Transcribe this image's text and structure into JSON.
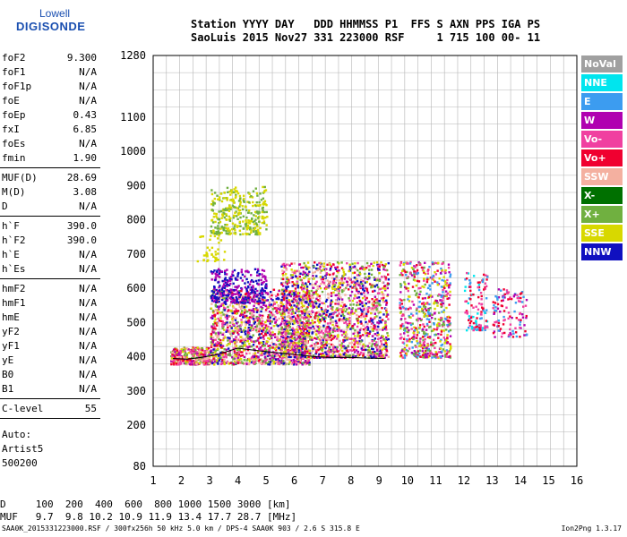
{
  "logo": {
    "line1": "Lowell",
    "line2": "DIGISONDE"
  },
  "header": {
    "line1": "Station YYYY DAY   DDD HHMMSS P1  FFS S AXN PPS IGA PS",
    "line2": "SaoLuis 2015 Nov27 331 223000 RSF     1 715 100 00- 11"
  },
  "params_group1": [
    {
      "label": "foF2",
      "value": "9.300"
    },
    {
      "label": "foF1",
      "value": "N/A"
    },
    {
      "label": "foF1p",
      "value": "N/A"
    },
    {
      "label": "foE",
      "value": "N/A"
    },
    {
      "label": "foEp",
      "value": "0.43"
    },
    {
      "label": "fxI",
      "value": "6.85"
    },
    {
      "label": "foEs",
      "value": "N/A"
    },
    {
      "label": "fmin",
      "value": "1.90"
    }
  ],
  "params_group2": [
    {
      "label": "MUF(D)",
      "value": "28.69"
    },
    {
      "label": "M(D)",
      "value": "3.08"
    },
    {
      "label": "D",
      "value": "N/A"
    }
  ],
  "params_group3": [
    {
      "label": "h`F",
      "value": "390.0"
    },
    {
      "label": "h`F2",
      "value": "390.0"
    },
    {
      "label": "h`E",
      "value": "N/A"
    },
    {
      "label": "h`Es",
      "value": "N/A"
    }
  ],
  "params_group4": [
    {
      "label": "hmF2",
      "value": "N/A"
    },
    {
      "label": "hmF1",
      "value": "N/A"
    },
    {
      "label": "hmE",
      "value": "N/A"
    },
    {
      "label": "yF2",
      "value": "N/A"
    },
    {
      "label": "yF1",
      "value": "N/A"
    },
    {
      "label": "yE",
      "value": "N/A"
    },
    {
      "label": "B0",
      "value": "N/A"
    },
    {
      "label": "B1",
      "value": "N/A"
    }
  ],
  "params_group5": [
    {
      "label": "C-level",
      "value": "55"
    }
  ],
  "auto": {
    "line1": "Auto:",
    "line2": "Artist5",
    "line3": "500200"
  },
  "legend": [
    {
      "label": "NoVal",
      "color": "#a0a0a0"
    },
    {
      "label": "NNE",
      "color": "#00e5ee"
    },
    {
      "label": "E",
      "color": "#3c9cf0"
    },
    {
      "label": "W",
      "color": "#b000b0"
    },
    {
      "label": "Vo-",
      "color": "#f040a0"
    },
    {
      "label": "Vo+",
      "color": "#f00030"
    },
    {
      "label": "SSW",
      "color": "#f4b0a0"
    },
    {
      "label": "X-",
      "color": "#007000"
    },
    {
      "label": "X+",
      "color": "#70b040"
    },
    {
      "label": "SSE",
      "color": "#d8d800"
    },
    {
      "label": "NNW",
      "color": "#1010c0"
    }
  ],
  "dtable": {
    "line1": "D     100  200  400  600  800 1000 1500 3000 [km]",
    "line2": "MUF   9.7  9.8 10.2 10.9 11.9 13.4 17.7 28.7 [MHz]"
  },
  "footer": "SAA0K_2015331223000.RSF / 300fx256h 50 kHz 5.0 km / DPS-4 SAA0K 903 / 2.6 S 315.8 E",
  "version": "Ion2Png 1.3.17",
  "chart_data": {
    "type": "scatter",
    "x_ticks": [
      "1",
      "2",
      "3",
      "4",
      "5",
      "6",
      "7",
      "8",
      "9",
      "10",
      "11",
      "12",
      "13",
      "14",
      "15",
      "16"
    ],
    "y_ticks": [
      "80",
      "200",
      "300",
      "400",
      "500",
      "600",
      "700",
      "800",
      "900",
      "1000",
      "1100",
      "1280"
    ],
    "x_range": [
      1,
      16
    ],
    "y_range": [
      80,
      1280
    ],
    "trace_line": [
      [
        1.7,
        395
      ],
      [
        2.2,
        393
      ],
      [
        2.7,
        398
      ],
      [
        3.2,
        405
      ],
      [
        3.6,
        415
      ],
      [
        4.0,
        425
      ],
      [
        4.5,
        420
      ],
      [
        5.0,
        415
      ],
      [
        5.6,
        410
      ],
      [
        6.2,
        405
      ],
      [
        6.8,
        400
      ],
      [
        7.3,
        398
      ],
      [
        8.0,
        398
      ],
      [
        8.6,
        396
      ],
      [
        9.2,
        395
      ]
    ]
  }
}
